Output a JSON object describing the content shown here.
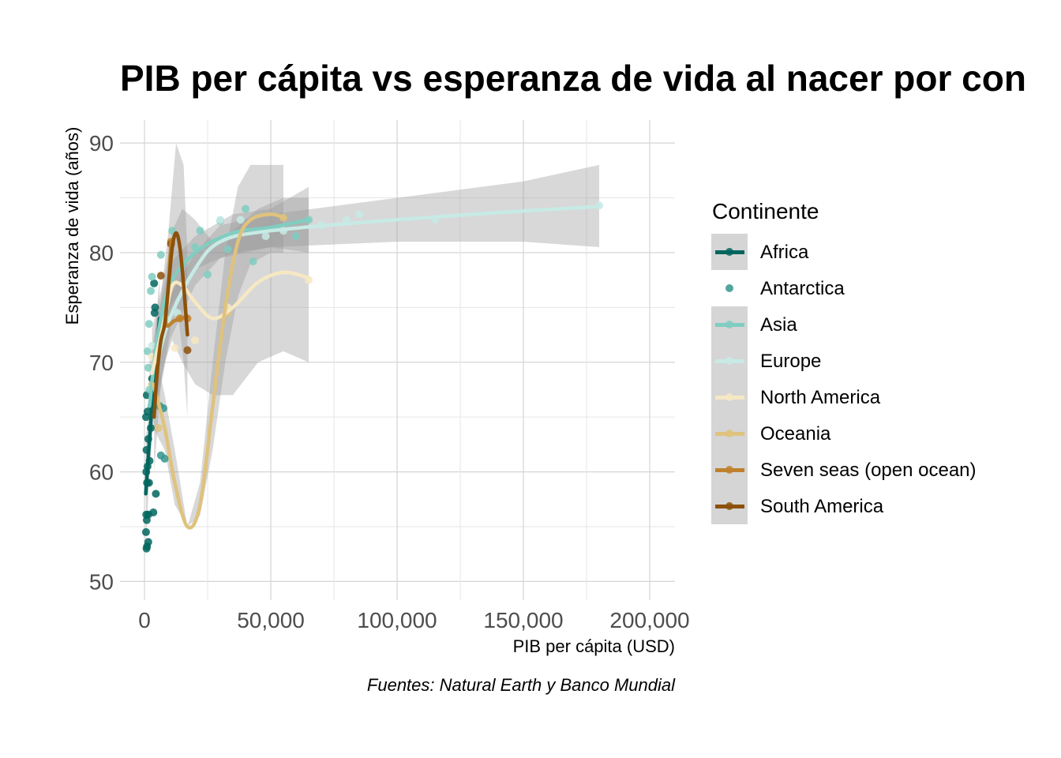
{
  "chart_data": {
    "type": "scatter",
    "title": "PIB per cápita vs esperanza de vida al nacer por con",
    "xlabel": "PIB per cápita  (USD)",
    "ylabel": "Esperanza de vida (años)",
    "caption": "Fuentes: Natural Earth y Banco Mundial",
    "xlim": [
      -9700,
      210000
    ],
    "ylim": [
      48.3,
      92.1
    ],
    "xticks": [
      0,
      50000,
      100000,
      150000,
      200000
    ],
    "xtick_labels": [
      "0",
      "50,000",
      "100,000",
      "150,000",
      "200,000"
    ],
    "yticks": [
      50,
      60,
      70,
      80,
      90
    ],
    "ytick_labels": [
      "50",
      "60",
      "70",
      "80",
      "90"
    ],
    "grid": true,
    "legend": {
      "title": "Continente",
      "position": "right"
    },
    "series": [
      {
        "name": "Africa",
        "color": "#01665E",
        "points": [
          [
            800,
            53
          ],
          [
            1000,
            53.2
          ],
          [
            1500,
            53.6
          ],
          [
            600,
            54.5
          ],
          [
            900,
            55.6
          ],
          [
            700,
            56.1
          ],
          [
            3500,
            56.3
          ],
          [
            1500,
            56.1
          ],
          [
            4500,
            58
          ],
          [
            1000,
            59
          ],
          [
            1800,
            59
          ],
          [
            700,
            60
          ],
          [
            1200,
            60.5
          ],
          [
            2000,
            61
          ],
          [
            800,
            62
          ],
          [
            1500,
            63
          ],
          [
            2500,
            64
          ],
          [
            600,
            65
          ],
          [
            1200,
            65.5
          ],
          [
            2800,
            66
          ],
          [
            900,
            67
          ],
          [
            3000,
            68.5
          ],
          [
            4000,
            74.5
          ],
          [
            4200,
            75
          ],
          [
            3800,
            77.2
          ]
        ],
        "curve": [
          [
            500,
            58
          ],
          [
            2000,
            63
          ],
          [
            4000,
            69
          ],
          [
            6000,
            74
          ]
        ],
        "ribbon_lo": [
          [
            500,
            53
          ],
          [
            2000,
            60
          ],
          [
            4000,
            66
          ],
          [
            6000,
            70
          ]
        ],
        "ribbon_hi": [
          [
            500,
            63
          ],
          [
            2000,
            66
          ],
          [
            4000,
            72
          ],
          [
            6000,
            78
          ]
        ]
      },
      {
        "name": "Antarctica",
        "color": "#35978F",
        "points": [
          [
            8000,
            61.2
          ],
          [
            6500,
            61.5
          ],
          [
            7500,
            65.8
          ],
          [
            6000,
            66
          ]
        ]
      },
      {
        "name": "Asia",
        "color": "#80CDC1",
        "points": [
          [
            1200,
            71
          ],
          [
            1800,
            73.5
          ],
          [
            2500,
            76.5
          ],
          [
            3000,
            77.8
          ],
          [
            6500,
            79.8
          ],
          [
            11000,
            82
          ],
          [
            22000,
            82
          ],
          [
            30000,
            82.9
          ],
          [
            40000,
            84
          ],
          [
            33000,
            80.3
          ],
          [
            43000,
            79.2
          ],
          [
            15000,
            79
          ],
          [
            25000,
            78
          ],
          [
            20000,
            80.5
          ],
          [
            60000,
            81.5
          ],
          [
            65000,
            83
          ],
          [
            2000,
            67.5
          ],
          [
            1500,
            69.5
          ]
        ],
        "curve": [
          [
            2000,
            66
          ],
          [
            5000,
            72
          ],
          [
            10000,
            77
          ],
          [
            20000,
            80
          ],
          [
            35000,
            81.8
          ],
          [
            50000,
            82.3
          ],
          [
            65000,
            83
          ]
        ],
        "ribbon_lo": [
          [
            2000,
            62
          ],
          [
            5000,
            70
          ],
          [
            10000,
            75
          ],
          [
            20000,
            78.5
          ],
          [
            35000,
            80
          ],
          [
            50000,
            80.5
          ],
          [
            65000,
            80
          ]
        ],
        "ribbon_hi": [
          [
            2000,
            70
          ],
          [
            5000,
            74
          ],
          [
            10000,
            79
          ],
          [
            20000,
            81.5
          ],
          [
            35000,
            83.5
          ],
          [
            50000,
            84
          ],
          [
            65000,
            86
          ]
        ]
      },
      {
        "name": "Europe",
        "color": "#C7EAE5",
        "points": [
          [
            3000,
            71.5
          ],
          [
            8000,
            73.5
          ],
          [
            13000,
            74.5
          ],
          [
            30000,
            83
          ],
          [
            38000,
            83
          ],
          [
            48000,
            81.5
          ],
          [
            55000,
            82
          ],
          [
            70000,
            82.5
          ],
          [
            80000,
            83
          ],
          [
            85000,
            83.5
          ],
          [
            115000,
            83
          ],
          [
            180000,
            84.3
          ]
        ],
        "curve": [
          [
            5000,
            70
          ],
          [
            10000,
            74
          ],
          [
            20000,
            78.5
          ],
          [
            30000,
            81
          ],
          [
            50000,
            82
          ],
          [
            100000,
            83
          ],
          [
            150000,
            83.8
          ],
          [
            180000,
            84.2
          ]
        ],
        "ribbon_lo": [
          [
            5000,
            66
          ],
          [
            10000,
            72
          ],
          [
            20000,
            77
          ],
          [
            30000,
            79.5
          ],
          [
            50000,
            80.5
          ],
          [
            100000,
            81
          ],
          [
            150000,
            81
          ],
          [
            180000,
            80.5
          ]
        ],
        "ribbon_hi": [
          [
            5000,
            74
          ],
          [
            10000,
            76
          ],
          [
            20000,
            80
          ],
          [
            30000,
            82.5
          ],
          [
            50000,
            83.5
          ],
          [
            100000,
            85
          ],
          [
            150000,
            86.5
          ],
          [
            180000,
            88
          ]
        ]
      },
      {
        "name": "North America",
        "color": "#F6E8C3",
        "points": [
          [
            3000,
            70.5
          ],
          [
            8000,
            74
          ],
          [
            12000,
            71.3
          ],
          [
            20000,
            72
          ],
          [
            33000,
            75
          ],
          [
            65000,
            77.5
          ]
        ],
        "curve": [
          [
            3000,
            69
          ],
          [
            8000,
            74
          ],
          [
            11000,
            77
          ],
          [
            15000,
            77
          ],
          [
            20000,
            75.5
          ],
          [
            27000,
            74
          ],
          [
            35000,
            75
          ],
          [
            45000,
            77.3
          ],
          [
            55000,
            78.2
          ],
          [
            65000,
            77.7
          ]
        ],
        "ribbon_lo": [
          [
            3000,
            65
          ],
          [
            8000,
            70
          ],
          [
            11000,
            72
          ],
          [
            15000,
            70
          ],
          [
            20000,
            68
          ],
          [
            27000,
            67
          ],
          [
            35000,
            67
          ],
          [
            45000,
            70
          ],
          [
            55000,
            71
          ],
          [
            65000,
            70
          ]
        ],
        "ribbon_hi": [
          [
            3000,
            73
          ],
          [
            8000,
            78
          ],
          [
            11000,
            82
          ],
          [
            15000,
            84
          ],
          [
            20000,
            83
          ],
          [
            27000,
            81
          ],
          [
            35000,
            82
          ],
          [
            45000,
            84
          ],
          [
            55000,
            85
          ],
          [
            65000,
            85
          ]
        ]
      },
      {
        "name": "Oceania",
        "color": "#DFC27D",
        "points": [
          [
            3000,
            68
          ],
          [
            5500,
            64
          ],
          [
            33000,
            74.5
          ],
          [
            55000,
            83.2
          ]
        ],
        "curve": [
          [
            3500,
            68
          ],
          [
            8000,
            64
          ],
          [
            12000,
            59
          ],
          [
            17000,
            55
          ],
          [
            22000,
            57
          ],
          [
            27000,
            66
          ],
          [
            32000,
            75
          ],
          [
            37000,
            81
          ],
          [
            42000,
            83
          ],
          [
            50000,
            83.5
          ],
          [
            55000,
            83.2
          ]
        ],
        "ribbon_lo": [
          [
            3500,
            64
          ],
          [
            8000,
            62
          ],
          [
            12000,
            57
          ],
          [
            17000,
            55
          ],
          [
            22000,
            56
          ],
          [
            27000,
            62
          ],
          [
            32000,
            70
          ],
          [
            37000,
            76
          ],
          [
            42000,
            79
          ],
          [
            50000,
            80
          ],
          [
            55000,
            80
          ]
        ],
        "ribbon_hi": [
          [
            3500,
            72
          ],
          [
            8000,
            67
          ],
          [
            12000,
            62
          ],
          [
            17000,
            55
          ],
          [
            22000,
            59
          ],
          [
            27000,
            70
          ],
          [
            32000,
            80
          ],
          [
            37000,
            86
          ],
          [
            42000,
            88
          ],
          [
            50000,
            88
          ],
          [
            55000,
            88
          ]
        ]
      },
      {
        "name": "Seven seas (open ocean)",
        "color": "#BF812D",
        "points": [
          [
            10500,
            81
          ],
          [
            17000,
            74
          ],
          [
            14000,
            74
          ]
        ],
        "curve": [
          [
            10500,
            81
          ],
          [
            9500,
            77
          ],
          [
            8500,
            73.5
          ],
          [
            12000,
            73.8
          ],
          [
            17000,
            74.2
          ]
        ]
      },
      {
        "name": "South America",
        "color": "#8C510A",
        "points": [
          [
            6500,
            77.9
          ],
          [
            10500,
            80.8
          ],
          [
            17000,
            71.1
          ]
        ],
        "curve": [
          [
            3800,
            65
          ],
          [
            5000,
            69
          ],
          [
            6500,
            72
          ],
          [
            8000,
            73.5
          ],
          [
            9500,
            77
          ],
          [
            11000,
            80.5
          ],
          [
            12500,
            81.8
          ],
          [
            14000,
            80.5
          ],
          [
            15500,
            77
          ],
          [
            17000,
            72.5
          ]
        ],
        "ribbon_lo": [
          [
            3800,
            60
          ],
          [
            6500,
            68
          ],
          [
            9500,
            72
          ],
          [
            12500,
            76
          ],
          [
            15500,
            70
          ],
          [
            17000,
            65
          ]
        ],
        "ribbon_hi": [
          [
            3800,
            70
          ],
          [
            6500,
            76
          ],
          [
            9500,
            82
          ],
          [
            12500,
            90
          ],
          [
            15500,
            88
          ],
          [
            17000,
            80
          ]
        ]
      }
    ]
  }
}
